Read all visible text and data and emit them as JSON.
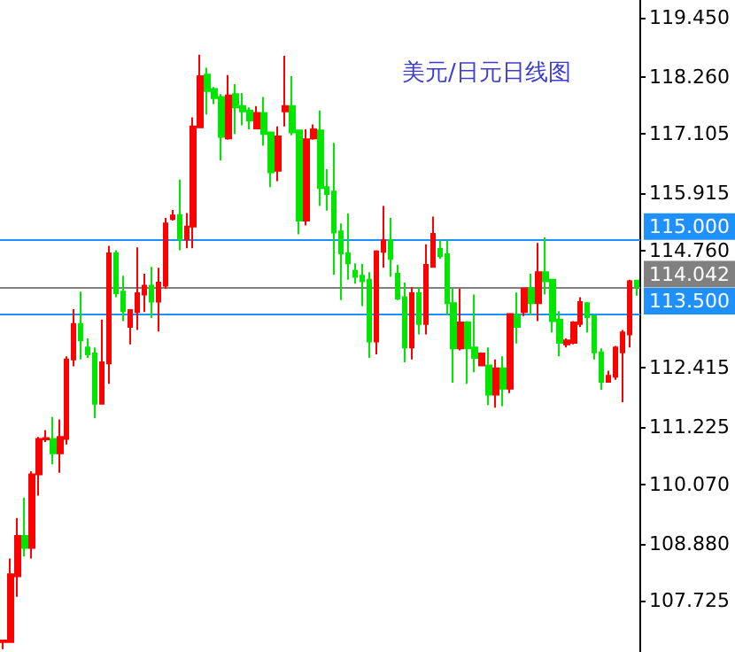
{
  "chart_data": {
    "type": "candlestick",
    "title": "美元/日元日线图",
    "categories": [
      null,
      null,
      null,
      null,
      null,
      null,
      null,
      null,
      null,
      null,
      null,
      null,
      null,
      null,
      null,
      null,
      null,
      null,
      null,
      null,
      null,
      null,
      null,
      null,
      null,
      null,
      null,
      null,
      null,
      null,
      null,
      null,
      null,
      null,
      null,
      null,
      null,
      null,
      null,
      null,
      null,
      null,
      null,
      null,
      null,
      null,
      null,
      null,
      null,
      null,
      null,
      null,
      null,
      null,
      null,
      null,
      null,
      null,
      null,
      null,
      null,
      null,
      null,
      null,
      null,
      null,
      null,
      null,
      null,
      null,
      null,
      null,
      null,
      null,
      null,
      null,
      null,
      null,
      null,
      null,
      null,
      null,
      null,
      null,
      null,
      null,
      null,
      null,
      null,
      null,
      null
    ],
    "ohlc": [
      [
        106.9,
        106.93,
        106.76,
        106.93
      ],
      [
        106.9,
        108.58,
        106.9,
        108.26
      ],
      [
        108.22,
        109.39,
        107.81,
        109.03
      ],
      [
        109.03,
        109.8,
        108.62,
        108.79
      ],
      [
        108.79,
        110.33,
        108.58,
        110.27
      ],
      [
        110.27,
        111.02,
        109.84,
        110.98
      ],
      [
        110.97,
        111.16,
        110.92,
        111.0
      ],
      [
        110.98,
        111.42,
        110.47,
        110.69
      ],
      [
        110.69,
        111.37,
        110.3,
        111.02
      ],
      [
        110.98,
        112.64,
        110.87,
        112.58
      ],
      [
        112.58,
        113.59,
        112.44,
        113.29
      ],
      [
        113.29,
        113.94,
        112.58,
        112.96
      ],
      [
        112.82,
        113.0,
        112.61,
        112.68
      ],
      [
        112.7,
        112.82,
        111.4,
        111.69
      ],
      [
        111.69,
        113.38,
        111.69,
        112.52
      ],
      [
        112.5,
        114.86,
        112.09,
        114.71
      ],
      [
        114.71,
        114.77,
        113.83,
        113.91
      ],
      [
        113.94,
        114.26,
        113.35,
        113.55
      ],
      [
        113.23,
        113.57,
        112.88,
        113.57
      ],
      [
        113.53,
        114.83,
        113.17,
        113.91
      ],
      [
        113.88,
        114.3,
        113.53,
        114.06
      ],
      [
        114.06,
        114.44,
        113.41,
        113.74
      ],
      [
        113.74,
        114.42,
        113.14,
        114.12
      ],
      [
        114.06,
        115.42,
        114.0,
        115.31
      ],
      [
        115.4,
        115.58,
        115.37,
        115.47
      ],
      [
        115.48,
        116.19,
        114.77,
        114.99
      ],
      [
        114.99,
        115.52,
        114.81,
        115.25
      ],
      [
        115.25,
        117.44,
        114.81,
        117.26
      ],
      [
        117.24,
        118.7,
        117.24,
        118.27
      ],
      [
        118.3,
        118.44,
        117.5,
        117.97
      ],
      [
        118.01,
        118.05,
        117.71,
        117.83
      ],
      [
        117.85,
        117.91,
        116.58,
        117.05
      ],
      [
        117.02,
        118.29,
        116.99,
        117.88
      ],
      [
        117.91,
        118.11,
        117.11,
        117.64
      ],
      [
        117.67,
        117.93,
        117.28,
        117.56
      ],
      [
        117.58,
        117.64,
        117.2,
        117.38
      ],
      [
        117.22,
        117.67,
        117.22,
        117.53
      ],
      [
        117.53,
        117.85,
        116.87,
        117.11
      ],
      [
        117.14,
        117.14,
        116.04,
        116.34
      ],
      [
        116.37,
        117.26,
        116.16,
        117.06
      ],
      [
        117.56,
        118.68,
        117.26,
        117.67
      ],
      [
        117.67,
        118.27,
        117.08,
        117.14
      ],
      [
        117.18,
        117.18,
        115.09,
        115.37
      ],
      [
        115.37,
        117.2,
        115.27,
        117.0
      ],
      [
        117.02,
        117.3,
        116.99,
        117.2
      ],
      [
        117.18,
        117.58,
        115.66,
        116.02
      ],
      [
        116.04,
        116.4,
        115.57,
        115.9
      ],
      [
        115.95,
        116.93,
        114.28,
        115.13
      ],
      [
        115.15,
        115.31,
        113.77,
        114.71
      ],
      [
        114.71,
        115.51,
        114.18,
        114.51
      ],
      [
        114.36,
        114.51,
        114.1,
        114.24
      ],
      [
        114.26,
        114.5,
        113.65,
        114.15
      ],
      [
        114.18,
        114.33,
        112.61,
        112.94
      ],
      [
        112.94,
        114.77,
        112.68,
        114.75
      ],
      [
        114.74,
        115.66,
        114.42,
        114.97
      ],
      [
        114.97,
        115.42,
        114.24,
        114.6
      ],
      [
        114.3,
        114.48,
        113.77,
        113.8
      ],
      [
        113.83,
        114.12,
        112.52,
        112.82
      ],
      [
        112.82,
        114.03,
        112.58,
        113.91
      ],
      [
        113.91,
        114.03,
        113.08,
        113.29
      ],
      [
        113.29,
        114.89,
        113.08,
        114.48
      ],
      [
        114.44,
        115.45,
        114.42,
        115.1
      ],
      [
        114.8,
        114.97,
        114.6,
        114.65
      ],
      [
        114.69,
        114.97,
        113.47,
        113.71
      ],
      [
        113.71,
        114.0,
        112.11,
        112.8
      ],
      [
        112.8,
        114.0,
        112.76,
        113.32
      ],
      [
        113.32,
        113.35,
        112.09,
        112.8
      ],
      [
        112.82,
        113.88,
        112.32,
        112.61
      ],
      [
        112.46,
        112.72,
        112.44,
        112.7
      ],
      [
        112.46,
        112.82,
        111.66,
        111.87
      ],
      [
        111.87,
        112.58,
        111.61,
        112.4
      ],
      [
        112.4,
        112.64,
        111.64,
        111.99
      ],
      [
        111.99,
        113.49,
        111.9,
        113.49
      ],
      [
        113.47,
        113.92,
        112.9,
        113.23
      ],
      [
        113.53,
        114.0,
        113.45,
        114.0
      ],
      [
        114.0,
        114.3,
        113.47,
        113.71
      ],
      [
        113.71,
        114.92,
        113.35,
        114.33
      ],
      [
        114.33,
        115.03,
        113.88,
        114.15
      ],
      [
        114.18,
        114.18,
        113.12,
        113.35
      ],
      [
        113.38,
        113.55,
        112.64,
        112.91
      ],
      [
        112.88,
        113.0,
        112.82,
        112.96
      ],
      [
        112.91,
        113.35,
        112.88,
        113.32
      ],
      [
        113.29,
        113.83,
        113.23,
        113.73
      ],
      [
        113.71,
        113.73,
        113.12,
        113.43
      ],
      [
        113.45,
        113.47,
        112.58,
        112.72
      ],
      [
        112.72,
        112.8,
        111.97,
        112.13
      ],
      [
        112.13,
        112.35,
        112.13,
        112.25
      ],
      [
        112.23,
        112.85,
        112.17,
        112.82
      ],
      [
        112.72,
        113.17,
        111.72,
        113.12
      ],
      [
        113.08,
        114.18,
        112.82,
        114.15
      ],
      [
        114.16,
        114.18,
        113.86,
        114.04
      ]
    ],
    "colors": [
      "#ff0000",
      "#ff0000",
      "#ff0000",
      "#00e600",
      "#ff0000",
      "#ff0000",
      "#ff0000",
      "#00e600",
      "#ff0000",
      "#ff0000",
      "#ff0000",
      "#00e600",
      "#00e600",
      "#00e600",
      "#ff0000",
      "#ff0000",
      "#00e600",
      "#00e600",
      "#ff0000",
      "#ff0000",
      "#ff0000",
      "#00e600",
      "#ff0000",
      "#ff0000",
      "#ff0000",
      "#00e600",
      "#ff0000",
      "#ff0000",
      "#ff0000",
      "#00e600",
      "#00e600",
      "#00e600",
      "#ff0000",
      "#00e600",
      "#00e600",
      "#00e600",
      "#ff0000",
      "#00e600",
      "#00e600",
      "#ff0000",
      "#ff0000",
      "#00e600",
      "#00e600",
      "#ff0000",
      "#ff0000",
      "#00e600",
      "#00e600",
      "#00e600",
      "#00e600",
      "#00e600",
      "#00e600",
      "#00e600",
      "#00e600",
      "#ff0000",
      "#ff0000",
      "#00e600",
      "#00e600",
      "#00e600",
      "#ff0000",
      "#00e600",
      "#ff0000",
      "#ff0000",
      "#00e600",
      "#00e600",
      "#00e600",
      "#ff0000",
      "#00e600",
      "#00e600",
      "#ff0000",
      "#00e600",
      "#ff0000",
      "#00e600",
      "#ff0000",
      "#00e600",
      "#ff0000",
      "#00e600",
      "#ff0000",
      "#00e600",
      "#00e600",
      "#00e600",
      "#ff0000",
      "#ff0000",
      "#ff0000",
      "#00e600",
      "#00e600",
      "#00e600",
      "#ff0000",
      "#ff0000",
      "#ff0000",
      "#ff0000",
      "#00e600"
    ],
    "ylim": [
      106.7,
      119.8
    ],
    "yticks": [
      {
        "value": 119.45,
        "label": "119.450"
      },
      {
        "value": 118.26,
        "label": "118.260"
      },
      {
        "value": 117.105,
        "label": "117.105"
      },
      {
        "value": 115.915,
        "label": "115.915"
      },
      {
        "value": 114.76,
        "label": "114.760"
      },
      {
        "value": 112.415,
        "label": "112.415"
      },
      {
        "value": 111.225,
        "label": "111.225"
      },
      {
        "value": 110.07,
        "label": "110.070"
      },
      {
        "value": 108.88,
        "label": "108.880"
      },
      {
        "value": 107.725,
        "label": "107.725"
      }
    ],
    "tick_labels": "y",
    "ref_lines": [
      {
        "axis": "y",
        "value": 115.0,
        "label": "115.000",
        "color": "#1e90ff"
      },
      {
        "axis": "y",
        "value": 114.042,
        "label": "114.042",
        "color": "#808080"
      },
      {
        "axis": "y",
        "value": 113.5,
        "label": "113.500",
        "color": "#1e90ff"
      }
    ]
  }
}
